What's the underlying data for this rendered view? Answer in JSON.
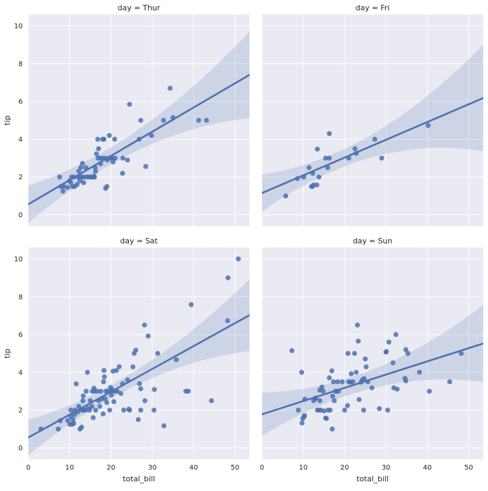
{
  "chart_data": {
    "type": "scatter",
    "kind": "facet-grid regression (lmplot)",
    "x_label": "total_bill",
    "y_label": "tip",
    "xlim": [
      0,
      53.5
    ],
    "ylim": [
      -0.6,
      10.6
    ],
    "x_ticks": [
      0,
      10,
      20,
      30,
      40,
      50
    ],
    "y_ticks": [
      0,
      2,
      4,
      6,
      8,
      10
    ],
    "colors": {
      "points": "#4c72b0",
      "line": "#4c72b0",
      "band": "#4c72b0",
      "panel_bg": "#eaeaf2",
      "grid": "#ffffff"
    },
    "panels": [
      {
        "title": "day = Thur",
        "fit": {
          "intercept": 0.56,
          "slope": 0.128
        },
        "ci": {
          "x0": 7.5,
          "x1": 50,
          "xc": 18.8,
          "w0": 0.45,
          "w1": 0.6,
          "w2": 0.0012
        },
        "points": [
          [
            7.6,
            2.0
          ],
          [
            7.9,
            1.5
          ],
          [
            8.6,
            1.5
          ],
          [
            8.4,
            1.25
          ],
          [
            9.5,
            1.45
          ],
          [
            10.0,
            1.8
          ],
          [
            10.3,
            1.7
          ],
          [
            10.5,
            2.0
          ],
          [
            10.7,
            1.5
          ],
          [
            11.0,
            2.0
          ],
          [
            11.2,
            1.5
          ],
          [
            11.8,
            1.6
          ],
          [
            12.0,
            2.0
          ],
          [
            12.2,
            2.31
          ],
          [
            12.5,
            1.8
          ],
          [
            12.6,
            2.0
          ],
          [
            12.7,
            2.5
          ],
          [
            13.0,
            2.0
          ],
          [
            13.1,
            2.72
          ],
          [
            13.4,
            1.7
          ],
          [
            13.5,
            2.0
          ],
          [
            13.9,
            2.5
          ],
          [
            14.3,
            2.0
          ],
          [
            14.5,
            2.0
          ],
          [
            15.0,
            2.0
          ],
          [
            15.4,
            2.0
          ],
          [
            15.7,
            2.0
          ],
          [
            15.9,
            2.05
          ],
          [
            16.0,
            2.0
          ],
          [
            16.2,
            2.5
          ],
          [
            16.3,
            2.3
          ],
          [
            16.5,
            3.23
          ],
          [
            16.9,
            3.0
          ],
          [
            17.0,
            3.5
          ],
          [
            17.3,
            3.0
          ],
          [
            17.5,
            2.7
          ],
          [
            18.0,
            3.0
          ],
          [
            18.3,
            4.0
          ],
          [
            18.5,
            3.0
          ],
          [
            18.7,
            1.4
          ],
          [
            19.0,
            1.5
          ],
          [
            19.1,
            2.9
          ],
          [
            19.5,
            3.0
          ],
          [
            19.6,
            4.2
          ],
          [
            20.0,
            3.0
          ],
          [
            20.3,
            3.0
          ],
          [
            20.5,
            2.8
          ],
          [
            20.9,
            4.0
          ],
          [
            21.0,
            3.0
          ],
          [
            22.8,
            2.2
          ],
          [
            22.9,
            3.0
          ],
          [
            24.0,
            2.9
          ],
          [
            24.5,
            5.85
          ],
          [
            26.8,
            4.0
          ],
          [
            27.2,
            5.0
          ],
          [
            28.4,
            2.56
          ],
          [
            29.8,
            4.2
          ],
          [
            32.7,
            5.0
          ],
          [
            34.3,
            6.7
          ],
          [
            35.0,
            5.15
          ],
          [
            41.2,
            5.0
          ],
          [
            43.1,
            5.0
          ],
          [
            16.8,
            4.0
          ],
          [
            18.0,
            4.0
          ]
        ]
      },
      {
        "title": "day = Fri",
        "fit": {
          "intercept": 1.15,
          "slope": 0.094
        },
        "ci": {
          "x0": 5.75,
          "x1": 40.2,
          "xc": 17.2,
          "w0": 0.45,
          "w1": 0.7,
          "w2": 0.0035
        },
        "points": [
          [
            5.75,
            1.0
          ],
          [
            8.6,
            1.92
          ],
          [
            10.1,
            2.0
          ],
          [
            11.4,
            2.5
          ],
          [
            12.0,
            1.5
          ],
          [
            12.3,
            2.2
          ],
          [
            12.5,
            1.58
          ],
          [
            13.3,
            1.58
          ],
          [
            13.4,
            3.48
          ],
          [
            15.4,
            3.0
          ],
          [
            15.9,
            2.5
          ],
          [
            16.3,
            3.0
          ],
          [
            16.3,
            4.3
          ],
          [
            21.0,
            3.0
          ],
          [
            22.5,
            3.5
          ],
          [
            22.8,
            3.25
          ],
          [
            27.3,
            4.0
          ],
          [
            28.97,
            3.0
          ],
          [
            40.2,
            4.73
          ],
          [
            12.2,
            1.5
          ],
          [
            13.8,
            2.0
          ]
        ]
      },
      {
        "title": "day = Sat",
        "fit": {
          "intercept": 0.55,
          "slope": 0.121
        },
        "ci": {
          "x0": 3.0,
          "x1": 50.8,
          "xc": 20.4,
          "w0": 0.35,
          "w1": 0.55,
          "w2": 0.0013
        },
        "points": [
          [
            3.07,
            1.0
          ],
          [
            7.25,
            1.0
          ],
          [
            7.74,
            1.44
          ],
          [
            9.55,
            1.45
          ],
          [
            10.07,
            1.25
          ],
          [
            10.3,
            1.66
          ],
          [
            10.6,
            1.25
          ],
          [
            10.3,
            2.0
          ],
          [
            10.8,
            1.5
          ],
          [
            11.0,
            1.3
          ],
          [
            11.2,
            1.76
          ],
          [
            11.3,
            2.0
          ],
          [
            11.6,
            3.39
          ],
          [
            12.0,
            1.9
          ],
          [
            12.2,
            2.2
          ],
          [
            12.5,
            1.0
          ],
          [
            12.9,
            1.1
          ],
          [
            13.0,
            2.0
          ],
          [
            13.2,
            2.5
          ],
          [
            13.3,
            2.75
          ],
          [
            13.4,
            2.0
          ],
          [
            13.8,
            2.0
          ],
          [
            14.0,
            3.0
          ],
          [
            14.3,
            4.0
          ],
          [
            14.5,
            2.1
          ],
          [
            14.8,
            2.0
          ],
          [
            15.0,
            2.5
          ],
          [
            15.4,
            2.2
          ],
          [
            15.5,
            3.0
          ],
          [
            15.7,
            1.6
          ],
          [
            15.9,
            3.16
          ],
          [
            16.0,
            3.0
          ],
          [
            16.3,
            2.0
          ],
          [
            16.6,
            3.0
          ],
          [
            17.0,
            2.5
          ],
          [
            17.3,
            2.2
          ],
          [
            17.5,
            3.0
          ],
          [
            17.8,
            2.6
          ],
          [
            18.1,
            1.8
          ],
          [
            18.2,
            3.5
          ],
          [
            18.3,
            4.1
          ],
          [
            18.4,
            3.76
          ],
          [
            18.6,
            2.6
          ],
          [
            18.8,
            3.0
          ],
          [
            19.0,
            2.4
          ],
          [
            19.4,
            3.0
          ],
          [
            19.7,
            2.0
          ],
          [
            19.9,
            3.2
          ],
          [
            20.1,
            2.8
          ],
          [
            20.2,
            3.1
          ],
          [
            20.3,
            3.0
          ],
          [
            20.5,
            4.06
          ],
          [
            20.7,
            2.45
          ],
          [
            21.0,
            3.0
          ],
          [
            21.3,
            4.1
          ],
          [
            21.5,
            3.0
          ],
          [
            22.0,
            4.3
          ],
          [
            22.4,
            2.88
          ],
          [
            22.8,
            3.4
          ],
          [
            23.1,
            2.0
          ],
          [
            24.0,
            3.6
          ],
          [
            24.3,
            2.05
          ],
          [
            24.5,
            2.0
          ],
          [
            25.3,
            4.29
          ],
          [
            25.6,
            5.0
          ],
          [
            26.0,
            5.17
          ],
          [
            26.6,
            1.5
          ],
          [
            26.9,
            3.4
          ],
          [
            27.2,
            2.0
          ],
          [
            27.2,
            3.13
          ],
          [
            28.1,
            6.5
          ],
          [
            28.2,
            2.5
          ],
          [
            29.0,
            5.92
          ],
          [
            30.4,
            2.0
          ],
          [
            30.5,
            3.09
          ],
          [
            31.3,
            5.0
          ],
          [
            32.8,
            1.17
          ],
          [
            35.8,
            4.67
          ],
          [
            38.1,
            3.0
          ],
          [
            38.7,
            3.0
          ],
          [
            39.4,
            7.58
          ],
          [
            44.3,
            2.5
          ],
          [
            48.2,
            6.73
          ],
          [
            48.3,
            9.0
          ],
          [
            50.8,
            10.0
          ]
        ]
      },
      {
        "title": "day = Sun",
        "fit": {
          "intercept": 1.78,
          "slope": 0.07
        },
        "ci": {
          "x0": 7.25,
          "x1": 48.2,
          "xc": 21.4,
          "w0": 0.45,
          "w1": 0.6,
          "w2": 0.0012
        },
        "points": [
          [
            7.25,
            5.15
          ],
          [
            8.8,
            2.0
          ],
          [
            9.6,
            4.0
          ],
          [
            9.7,
            1.32
          ],
          [
            9.9,
            1.56
          ],
          [
            10.2,
            1.66
          ],
          [
            10.3,
            1.71
          ],
          [
            10.4,
            2.58
          ],
          [
            12.5,
            2.5
          ],
          [
            12.9,
            2.6
          ],
          [
            13.0,
            2.64
          ],
          [
            13.4,
            2.0
          ],
          [
            13.8,
            2.0
          ],
          [
            14.0,
            2.5
          ],
          [
            14.0,
            3.06
          ],
          [
            14.2,
            2.0
          ],
          [
            14.5,
            3.22
          ],
          [
            14.8,
            3.0
          ],
          [
            15.0,
            1.96
          ],
          [
            15.4,
            1.58
          ],
          [
            15.6,
            1.56
          ],
          [
            16.0,
            2.0
          ],
          [
            16.3,
            3.71
          ],
          [
            16.5,
            2.0
          ],
          [
            16.9,
            4.08
          ],
          [
            17.0,
            1.0
          ],
          [
            17.1,
            2.74
          ],
          [
            17.3,
            3.5
          ],
          [
            17.5,
            2.5
          ],
          [
            17.8,
            3.0
          ],
          [
            18.0,
            3.0
          ],
          [
            18.3,
            3.5
          ],
          [
            18.5,
            3.0
          ],
          [
            19.4,
            3.5
          ],
          [
            20.0,
            2.0
          ],
          [
            20.7,
            2.24
          ],
          [
            20.8,
            5.0
          ],
          [
            21.0,
            3.5
          ],
          [
            21.3,
            3.48
          ],
          [
            21.6,
            3.92
          ],
          [
            22.0,
            3.5
          ],
          [
            22.4,
            5.0
          ],
          [
            22.8,
            4.0
          ],
          [
            23.1,
            6.5
          ],
          [
            23.3,
            5.65
          ],
          [
            23.5,
            2.56
          ],
          [
            24.0,
            3.48
          ],
          [
            24.3,
            3.6
          ],
          [
            24.6,
            2.0
          ],
          [
            24.7,
            3.67
          ],
          [
            25.0,
            4.71
          ],
          [
            25.2,
            4.29
          ],
          [
            25.6,
            3.5
          ],
          [
            26.6,
            3.18
          ],
          [
            28.4,
            2.08
          ],
          [
            30.0,
            5.07
          ],
          [
            30.1,
            5.1
          ],
          [
            30.4,
            2.0
          ],
          [
            30.7,
            5.6
          ],
          [
            31.7,
            4.5
          ],
          [
            31.9,
            3.18
          ],
          [
            32.4,
            6.0
          ],
          [
            32.7,
            3.11
          ],
          [
            34.6,
            3.68
          ],
          [
            34.8,
            5.2
          ],
          [
            34.8,
            3.55
          ],
          [
            35.3,
            5.0
          ],
          [
            38.1,
            4.0
          ],
          [
            40.5,
            3.0
          ],
          [
            45.4,
            3.5
          ],
          [
            48.2,
            5.0
          ]
        ]
      }
    ]
  }
}
